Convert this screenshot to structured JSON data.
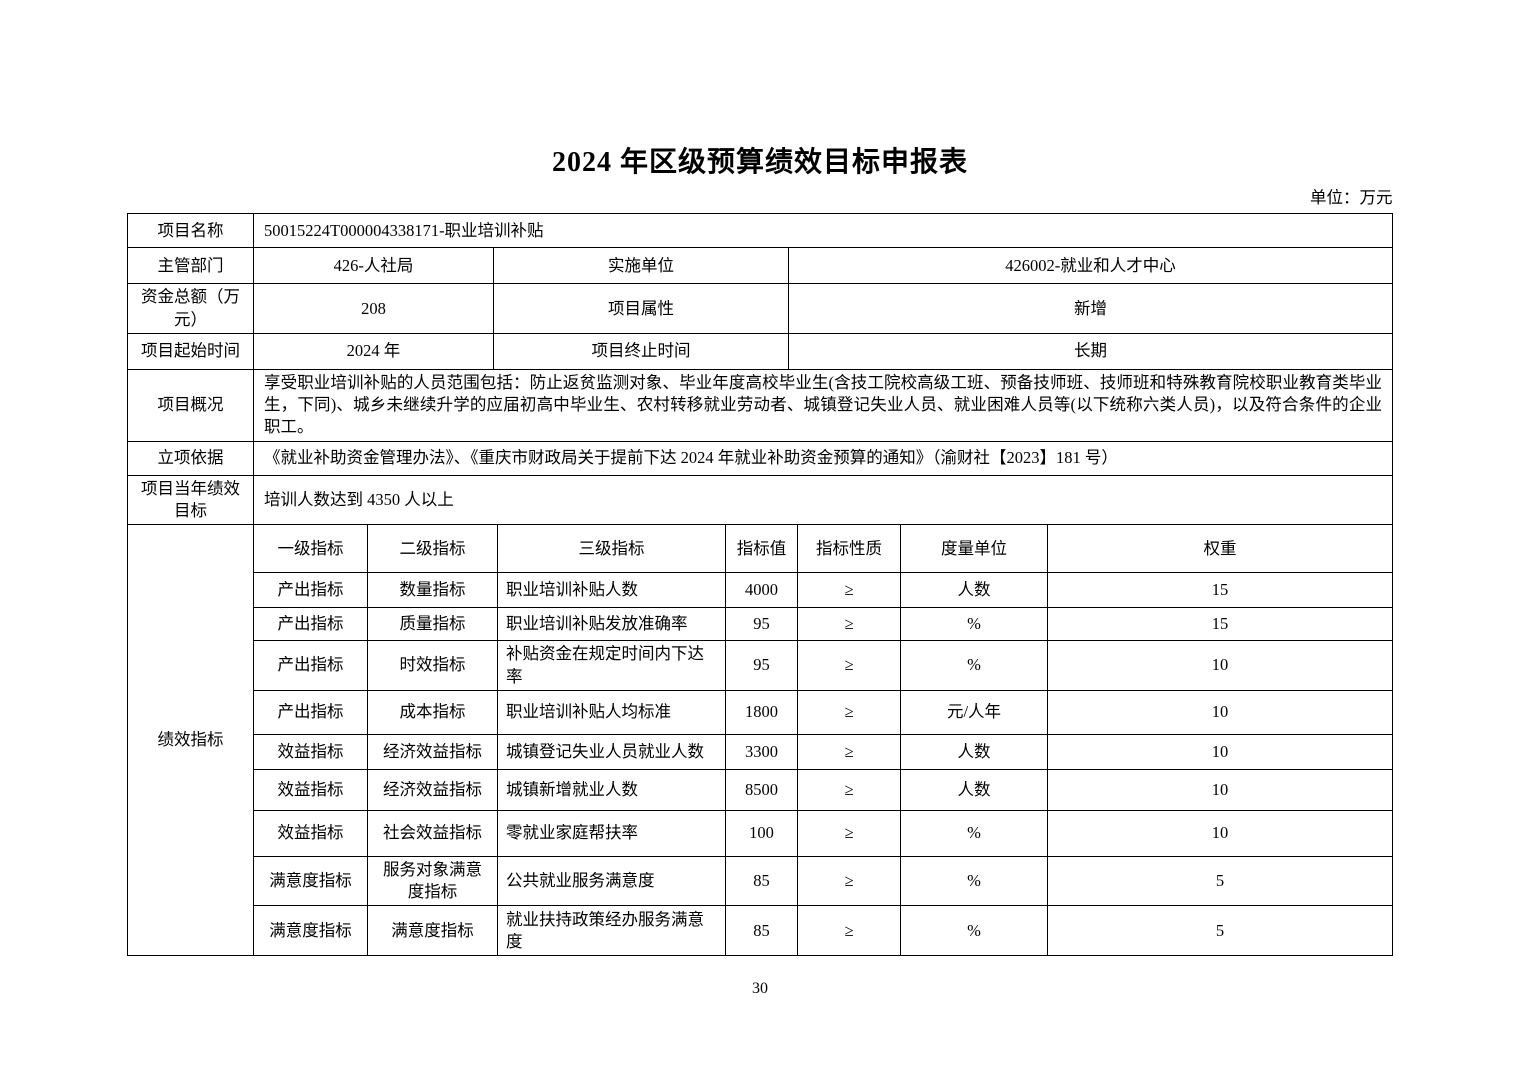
{
  "page": {
    "title": "2024 年区级预算绩效目标申报表",
    "unit_note": "单位：万元",
    "page_number": "30"
  },
  "info": {
    "project_name_label": "项目名称",
    "project_name_value": "50015224T000004338171-职业培训补贴",
    "dept_label": "主管部门",
    "dept_value": "426-人社局",
    "impl_unit_label": "实施单位",
    "impl_unit_value": "426002-就业和人才中心",
    "total_fund_label": "资金总额（万元）",
    "total_fund_value": "208",
    "attr_label": "项目属性",
    "attr_value": "新增",
    "start_label": "项目起始时间",
    "start_value": "2024 年",
    "end_label": "项目终止时间",
    "end_value": "长期",
    "overview_label": "项目概况",
    "overview_value": "享受职业培训补贴的人员范围包括：防止返贫监测对象、毕业年度高校毕业生(含技工院校高级工班、预备技师班、技师班和特殊教育院校职业教育类毕业生，下同)、城乡未继续升学的应届初高中毕业生、农村转移就业劳动者、城镇登记失业人员、就业困难人员等(以下统称六类人员)，以及符合条件的企业职工。",
    "basis_label": "立项依据",
    "basis_value": "《就业补助资金管理办法》、《重庆市财政局关于提前下达 2024 年就业补助资金预算的通知》（渝财社【2023】181 号）",
    "annual_goal_label": "项目当年绩效目标",
    "annual_goal_value": "培训人数达到 4350 人以上"
  },
  "indicators": {
    "section_label": "绩效指标",
    "headers": [
      "一级指标",
      "二级指标",
      "三级指标",
      "指标值",
      "指标性质",
      "度量单位",
      "权重"
    ],
    "rows": [
      [
        "产出指标",
        "数量指标",
        "职业培训补贴人数",
        "4000",
        "≥",
        "人数",
        "15"
      ],
      [
        "产出指标",
        "质量指标",
        "职业培训补贴发放准确率",
        "95",
        "≥",
        "%",
        "15"
      ],
      [
        "产出指标",
        "时效指标",
        "补贴资金在规定时间内下达率",
        "95",
        "≥",
        "%",
        "10"
      ],
      [
        "产出指标",
        "成本指标",
        "职业培训补贴人均标准",
        "1800",
        "≥",
        "元/人年",
        "10"
      ],
      [
        "效益指标",
        "经济效益指标",
        "城镇登记失业人员就业人数",
        "3300",
        "≥",
        "人数",
        "10"
      ],
      [
        "效益指标",
        "经济效益指标",
        "城镇新增就业人数",
        "8500",
        "≥",
        "人数",
        "10"
      ],
      [
        "效益指标",
        "社会效益指标",
        "零就业家庭帮扶率",
        "100",
        "≥",
        "%",
        "10"
      ],
      [
        "满意度指标",
        "服务对象满意度指标",
        "公共就业服务满意度",
        "85",
        "≥",
        "%",
        "5"
      ],
      [
        "满意度指标",
        "满意度指标",
        "就业扶持政策经办服务满意度",
        "85",
        "≥",
        "%",
        "5"
      ]
    ]
  }
}
